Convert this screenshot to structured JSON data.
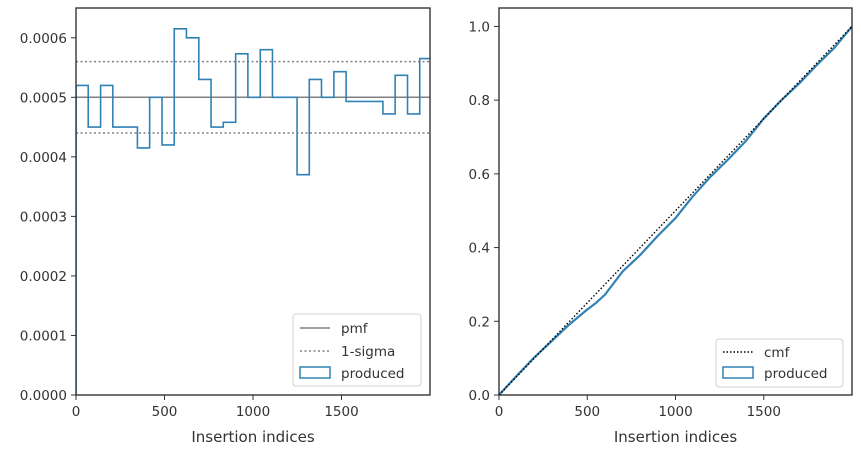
{
  "chart_data": [
    {
      "type": "step",
      "xlabel": "Insertion indices",
      "ylabel": "",
      "xlim": [
        0,
        2000
      ],
      "ylim": [
        0,
        0.00065
      ],
      "xticks": [
        0,
        500,
        1000,
        1500
      ],
      "xtick_labels": [
        "0",
        "500",
        "1000",
        "1500"
      ],
      "yticks": [
        0,
        0.0001,
        0.0002,
        0.0003,
        0.0004,
        0.0005,
        0.0006
      ],
      "ytick_labels": [
        "0.0000",
        "0.0001",
        "0.0002",
        "0.0003",
        "0.0004",
        "0.0005",
        "0.0006"
      ],
      "legend_position": "lower-right",
      "pmf": {
        "name": "pmf",
        "value": 0.0005,
        "color": "#808080"
      },
      "sigma": {
        "name": "1-sigma",
        "values": [
          0.00044,
          0.00056
        ],
        "color": "#808080"
      },
      "produced": {
        "name": "produced",
        "color": "#3182b4",
        "bin_edges": [
          0,
          69,
          139,
          208,
          277,
          347,
          416,
          486,
          555,
          624,
          694,
          763,
          832,
          902,
          971,
          1041,
          1110,
          1179,
          1249,
          1318,
          1387,
          1457,
          1526,
          1595,
          1665,
          1734,
          1803,
          1873,
          1942,
          2012
        ],
        "values": [
          0.00052,
          0.00045,
          0.00052,
          0.00045,
          0.00045,
          0.000415,
          0.0005,
          0.00042,
          0.000615,
          0.0006,
          0.00053,
          0.00045,
          0.000458,
          0.000573,
          0.0005,
          0.00058,
          0.0005,
          0.0005,
          0.00037,
          0.00053,
          0.0005,
          0.000543,
          0.000493,
          0.000493,
          0.000493,
          0.000472,
          0.000537,
          0.000472,
          0.000565
        ]
      }
    },
    {
      "type": "line",
      "xlabel": "Insertion indices",
      "ylabel": "",
      "xlim": [
        0,
        2000
      ],
      "ylim": [
        0,
        1.05
      ],
      "xticks": [
        0,
        500,
        1000,
        1500
      ],
      "xtick_labels": [
        "0",
        "500",
        "1000",
        "1500"
      ],
      "yticks": [
        0,
        0.2,
        0.4,
        0.6,
        0.8,
        1.0
      ],
      "ytick_labels": [
        "0.0",
        "0.2",
        "0.4",
        "0.6",
        "0.8",
        "1.0"
      ],
      "legend_position": "lower-right",
      "series": [
        {
          "name": "cmf",
          "style": "dotted",
          "color": "#000000",
          "x": [
            0,
            2000
          ],
          "y": [
            0,
            1.0
          ]
        },
        {
          "name": "produced",
          "style": "step",
          "color": "#3182b4",
          "x": [
            0,
            100,
            200,
            300,
            400,
            500,
            550,
            600,
            700,
            800,
            900,
            1000,
            1100,
            1200,
            1300,
            1400,
            1500,
            1600,
            1700,
            1800,
            1900,
            2000
          ],
          "y": [
            0,
            0.052,
            0.102,
            0.147,
            0.192,
            0.232,
            0.25,
            0.272,
            0.335,
            0.38,
            0.432,
            0.48,
            0.54,
            0.593,
            0.64,
            0.69,
            0.75,
            0.8,
            0.845,
            0.895,
            0.942,
            1.0
          ]
        }
      ]
    }
  ]
}
